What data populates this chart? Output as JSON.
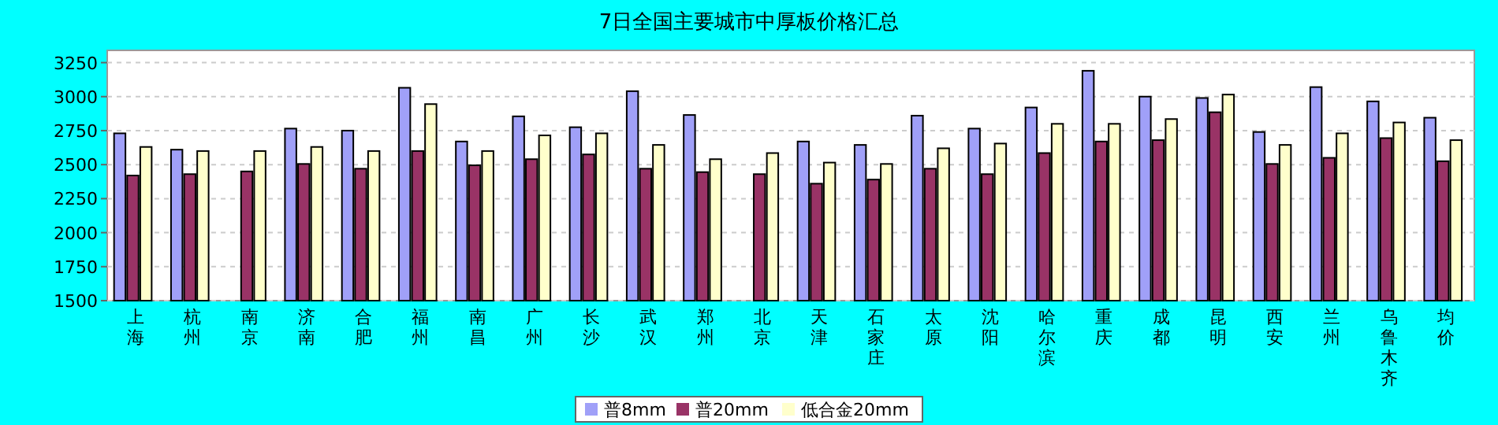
{
  "chart_data": {
    "type": "bar",
    "title": "7日全国主要城市中厚板价格汇总",
    "categories": [
      "上海",
      "杭州",
      "南京",
      "济南",
      "合肥",
      "福州",
      "南昌",
      "广州",
      "长沙",
      "武汉",
      "郑州",
      "北京",
      "天津",
      "石家庄",
      "太原",
      "沈阳",
      "哈尔滨",
      "重庆",
      "成都",
      "昆明",
      "西安",
      "兰州",
      "乌鲁木齐",
      "均价"
    ],
    "series": [
      {
        "name": "普8mm",
        "color": "#a0a0f8",
        "values": [
          2730,
          2610,
          null,
          2765,
          2750,
          3065,
          2670,
          2855,
          2775,
          3040,
          2865,
          null,
          2670,
          2645,
          2860,
          2765,
          2920,
          3190,
          3000,
          2990,
          2740,
          3070,
          2965,
          2845
        ]
      },
      {
        "name": "普20mm",
        "color": "#993366",
        "values": [
          2420,
          2430,
          2450,
          2505,
          2470,
          2600,
          2495,
          2540,
          2575,
          2470,
          2445,
          2430,
          2360,
          2390,
          2470,
          2430,
          2585,
          2670,
          2680,
          2885,
          2505,
          2550,
          2695,
          2525
        ]
      },
      {
        "name": "低合金20mm",
        "color": "#ffffcc",
        "values": [
          2630,
          2600,
          2600,
          2630,
          2600,
          2945,
          2600,
          2715,
          2730,
          2645,
          2540,
          2585,
          2515,
          2505,
          2620,
          2655,
          2800,
          2800,
          2835,
          3015,
          2645,
          2730,
          2810,
          2680
        ]
      }
    ],
    "ylim": [
      1500,
      3340
    ],
    "yticks": [
      1500,
      1750,
      2000,
      2250,
      2500,
      2750,
      3000,
      3250
    ],
    "grid": "y",
    "legend": "bottom"
  }
}
